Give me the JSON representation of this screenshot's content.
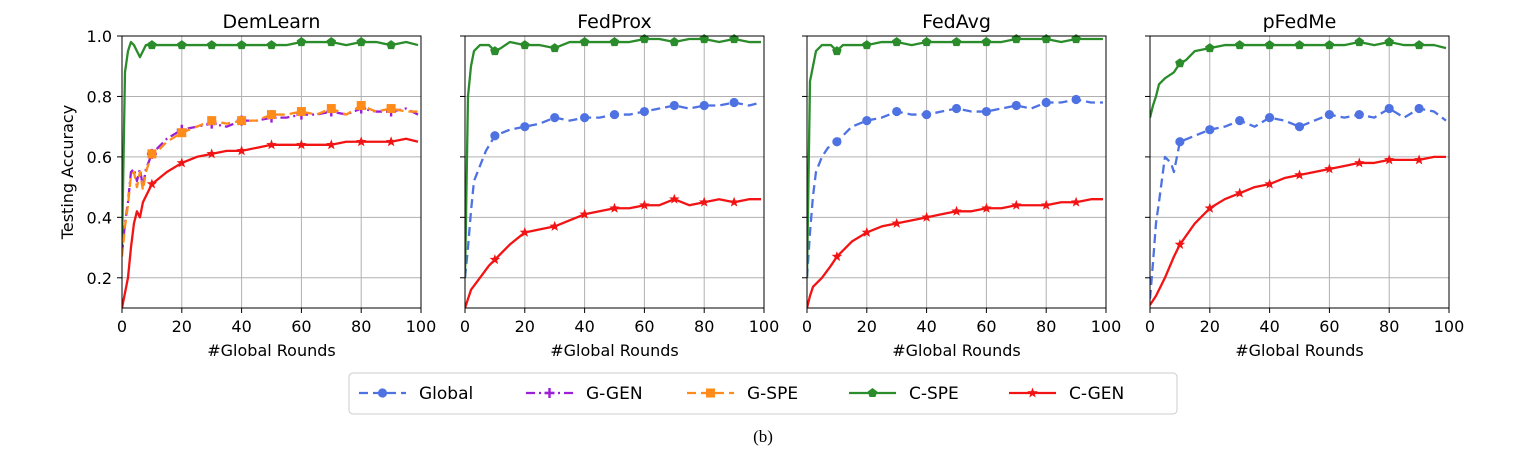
{
  "caption": "(b)",
  "colors": {
    "Global": "#4f72e3",
    "G-GEN": "#9b1fd6",
    "G-SPE": "#ff8c1a",
    "C-SPE": "#2a8c2a",
    "C-GEN": "#f21414",
    "grid": "#b0b0b0"
  },
  "legend": {
    "placement": "bottom-center",
    "items": [
      {
        "name": "Global",
        "style": "dashed",
        "marker": "circle"
      },
      {
        "name": "G-GEN",
        "style": "dashdot",
        "marker": "plus"
      },
      {
        "name": "G-SPE",
        "style": "dashed",
        "marker": "square"
      },
      {
        "name": "C-SPE",
        "style": "solid",
        "marker": "pentagon"
      },
      {
        "name": "C-GEN",
        "style": "solid",
        "marker": "star"
      }
    ]
  },
  "chart_data": [
    {
      "type": "line",
      "title": "DemLearn",
      "xlabel": "#Global Rounds",
      "ylabel": "Testing Accuracy",
      "xlim": [
        0,
        100
      ],
      "ylim": [
        0.1,
        1.0
      ],
      "xticks": [
        0,
        20,
        40,
        60,
        80,
        100
      ],
      "yticks": [
        0.2,
        0.4,
        0.6,
        0.8,
        1.0
      ],
      "grid": true,
      "series": [
        {
          "name": "G-GEN",
          "x": [
            0,
            1,
            2,
            3,
            4,
            5,
            6,
            7,
            8,
            10,
            12,
            15,
            20,
            25,
            30,
            35,
            40,
            45,
            50,
            55,
            60,
            65,
            70,
            75,
            80,
            85,
            90,
            95,
            99
          ],
          "values": [
            0.28,
            0.38,
            0.45,
            0.55,
            0.56,
            0.52,
            0.56,
            0.5,
            0.56,
            0.61,
            0.63,
            0.66,
            0.69,
            0.7,
            0.71,
            0.7,
            0.72,
            0.72,
            0.73,
            0.73,
            0.74,
            0.74,
            0.75,
            0.74,
            0.76,
            0.75,
            0.75,
            0.76,
            0.74
          ]
        },
        {
          "name": "G-SPE",
          "x": [
            0,
            1,
            2,
            3,
            4,
            5,
            6,
            7,
            8,
            10,
            12,
            15,
            20,
            25,
            30,
            35,
            40,
            45,
            50,
            55,
            60,
            65,
            70,
            75,
            80,
            85,
            90,
            95,
            99
          ],
          "values": [
            0.27,
            0.37,
            0.44,
            0.54,
            0.55,
            0.5,
            0.55,
            0.49,
            0.55,
            0.61,
            0.62,
            0.65,
            0.68,
            0.7,
            0.72,
            0.71,
            0.72,
            0.72,
            0.74,
            0.74,
            0.75,
            0.74,
            0.76,
            0.74,
            0.77,
            0.75,
            0.76,
            0.75,
            0.75
          ]
        },
        {
          "name": "C-SPE",
          "x": [
            0,
            1,
            2,
            3,
            4,
            5,
            6,
            8,
            10,
            15,
            20,
            25,
            30,
            35,
            40,
            45,
            50,
            55,
            60,
            65,
            70,
            75,
            80,
            85,
            90,
            95,
            99
          ],
          "values": [
            0.3,
            0.88,
            0.95,
            0.98,
            0.97,
            0.95,
            0.93,
            0.97,
            0.97,
            0.97,
            0.97,
            0.97,
            0.97,
            0.97,
            0.97,
            0.97,
            0.97,
            0.97,
            0.98,
            0.98,
            0.98,
            0.97,
            0.98,
            0.98,
            0.97,
            0.98,
            0.97
          ]
        },
        {
          "name": "C-GEN",
          "x": [
            0,
            1,
            2,
            3,
            4,
            5,
            6,
            7,
            8,
            10,
            15,
            20,
            25,
            30,
            35,
            40,
            45,
            50,
            55,
            60,
            65,
            70,
            75,
            80,
            85,
            90,
            95,
            99
          ],
          "values": [
            0.1,
            0.15,
            0.2,
            0.3,
            0.38,
            0.42,
            0.4,
            0.45,
            0.47,
            0.51,
            0.55,
            0.58,
            0.6,
            0.61,
            0.62,
            0.62,
            0.63,
            0.64,
            0.64,
            0.64,
            0.64,
            0.64,
            0.65,
            0.65,
            0.65,
            0.65,
            0.66,
            0.65
          ]
        }
      ]
    },
    {
      "type": "line",
      "title": "FedProx",
      "xlabel": "#Global Rounds",
      "ylabel": "",
      "xlim": [
        0,
        100
      ],
      "ylim": [
        0.1,
        1.0
      ],
      "xticks": [
        0,
        20,
        40,
        60,
        80,
        100
      ],
      "yticks": [
        0.2,
        0.4,
        0.6,
        0.8,
        1.0
      ],
      "grid": true,
      "series": [
        {
          "name": "Global",
          "x": [
            0,
            1,
            2,
            3,
            5,
            7,
            10,
            15,
            20,
            25,
            30,
            35,
            40,
            45,
            50,
            55,
            60,
            65,
            70,
            75,
            80,
            85,
            90,
            95,
            99
          ],
          "values": [
            0.2,
            0.3,
            0.42,
            0.52,
            0.57,
            0.62,
            0.67,
            0.69,
            0.7,
            0.71,
            0.73,
            0.72,
            0.73,
            0.73,
            0.74,
            0.74,
            0.75,
            0.76,
            0.77,
            0.76,
            0.77,
            0.77,
            0.78,
            0.77,
            0.78
          ]
        },
        {
          "name": "C-SPE",
          "x": [
            0,
            1,
            2,
            3,
            5,
            8,
            10,
            12,
            15,
            20,
            25,
            30,
            35,
            40,
            45,
            50,
            55,
            60,
            65,
            70,
            75,
            80,
            85,
            90,
            95,
            99
          ],
          "values": [
            0.2,
            0.8,
            0.9,
            0.95,
            0.97,
            0.97,
            0.95,
            0.96,
            0.98,
            0.97,
            0.97,
            0.96,
            0.98,
            0.98,
            0.98,
            0.98,
            0.98,
            0.99,
            0.99,
            0.98,
            0.99,
            0.99,
            0.98,
            0.99,
            0.98,
            0.98
          ]
        },
        {
          "name": "C-GEN",
          "x": [
            0,
            1,
            2,
            5,
            8,
            10,
            15,
            20,
            25,
            30,
            35,
            40,
            45,
            50,
            55,
            60,
            65,
            70,
            75,
            80,
            85,
            90,
            95,
            99
          ],
          "values": [
            0.1,
            0.13,
            0.16,
            0.2,
            0.24,
            0.26,
            0.31,
            0.35,
            0.36,
            0.37,
            0.39,
            0.41,
            0.42,
            0.43,
            0.43,
            0.44,
            0.44,
            0.46,
            0.44,
            0.45,
            0.46,
            0.45,
            0.46,
            0.46
          ]
        }
      ]
    },
    {
      "type": "line",
      "title": "FedAvg",
      "xlabel": "#Global Rounds",
      "ylabel": "",
      "xlim": [
        0,
        100
      ],
      "ylim": [
        0.1,
        1.0
      ],
      "xticks": [
        0,
        20,
        40,
        60,
        80,
        100
      ],
      "yticks": [
        0.2,
        0.4,
        0.6,
        0.8,
        1.0
      ],
      "grid": true,
      "series": [
        {
          "name": "Global",
          "x": [
            0,
            1,
            2,
            3,
            5,
            7,
            10,
            15,
            20,
            25,
            30,
            35,
            40,
            45,
            50,
            55,
            60,
            65,
            70,
            75,
            80,
            85,
            90,
            95,
            99
          ],
          "values": [
            0.2,
            0.35,
            0.47,
            0.55,
            0.6,
            0.63,
            0.65,
            0.7,
            0.72,
            0.73,
            0.75,
            0.74,
            0.74,
            0.75,
            0.76,
            0.75,
            0.75,
            0.76,
            0.77,
            0.76,
            0.78,
            0.78,
            0.79,
            0.78,
            0.78
          ]
        },
        {
          "name": "C-SPE",
          "x": [
            0,
            1,
            2,
            3,
            5,
            8,
            10,
            12,
            15,
            20,
            25,
            30,
            35,
            40,
            45,
            50,
            55,
            60,
            65,
            70,
            75,
            80,
            85,
            90,
            95,
            99
          ],
          "values": [
            0.2,
            0.85,
            0.9,
            0.95,
            0.97,
            0.97,
            0.95,
            0.97,
            0.97,
            0.97,
            0.98,
            0.98,
            0.97,
            0.98,
            0.98,
            0.98,
            0.98,
            0.98,
            0.98,
            0.99,
            0.99,
            0.99,
            0.98,
            0.99,
            0.99,
            0.99
          ]
        },
        {
          "name": "C-GEN",
          "x": [
            0,
            1,
            2,
            5,
            8,
            10,
            15,
            20,
            25,
            30,
            35,
            40,
            45,
            50,
            55,
            60,
            65,
            70,
            75,
            80,
            85,
            90,
            95,
            99
          ],
          "values": [
            0.1,
            0.14,
            0.17,
            0.2,
            0.24,
            0.27,
            0.32,
            0.35,
            0.37,
            0.38,
            0.39,
            0.4,
            0.41,
            0.42,
            0.42,
            0.43,
            0.43,
            0.44,
            0.44,
            0.44,
            0.45,
            0.45,
            0.46,
            0.46
          ]
        }
      ]
    },
    {
      "type": "line",
      "title": "pFedMe",
      "xlabel": "#Global Rounds",
      "ylabel": "",
      "xlim": [
        0,
        100
      ],
      "ylim": [
        0.1,
        1.0
      ],
      "xticks": [
        0,
        20,
        40,
        60,
        80,
        100
      ],
      "yticks": [
        0.2,
        0.4,
        0.6,
        0.8,
        1.0
      ],
      "grid": true,
      "series": [
        {
          "name": "Global",
          "x": [
            0,
            1,
            2,
            3,
            5,
            7,
            8,
            10,
            15,
            20,
            25,
            30,
            35,
            40,
            45,
            50,
            55,
            60,
            65,
            70,
            75,
            80,
            85,
            90,
            95,
            99
          ],
          "values": [
            0.13,
            0.25,
            0.38,
            0.45,
            0.6,
            0.58,
            0.55,
            0.65,
            0.67,
            0.69,
            0.7,
            0.72,
            0.7,
            0.73,
            0.72,
            0.7,
            0.72,
            0.74,
            0.73,
            0.74,
            0.73,
            0.76,
            0.73,
            0.76,
            0.75,
            0.72
          ]
        },
        {
          "name": "C-SPE",
          "x": [
            0,
            1,
            2,
            3,
            5,
            8,
            10,
            12,
            15,
            20,
            25,
            30,
            35,
            40,
            45,
            50,
            55,
            60,
            65,
            70,
            75,
            80,
            85,
            90,
            95,
            99
          ],
          "values": [
            0.73,
            0.77,
            0.8,
            0.84,
            0.86,
            0.88,
            0.91,
            0.92,
            0.95,
            0.96,
            0.97,
            0.97,
            0.97,
            0.97,
            0.97,
            0.97,
            0.97,
            0.97,
            0.97,
            0.98,
            0.97,
            0.98,
            0.97,
            0.97,
            0.97,
            0.96
          ]
        },
        {
          "name": "C-GEN",
          "x": [
            0,
            2,
            5,
            8,
            10,
            15,
            20,
            25,
            30,
            35,
            40,
            45,
            50,
            55,
            60,
            65,
            70,
            75,
            80,
            85,
            90,
            95,
            99
          ],
          "values": [
            0.11,
            0.14,
            0.2,
            0.27,
            0.31,
            0.38,
            0.43,
            0.46,
            0.48,
            0.5,
            0.51,
            0.53,
            0.54,
            0.55,
            0.56,
            0.57,
            0.58,
            0.58,
            0.59,
            0.59,
            0.59,
            0.6,
            0.6
          ]
        }
      ]
    }
  ]
}
